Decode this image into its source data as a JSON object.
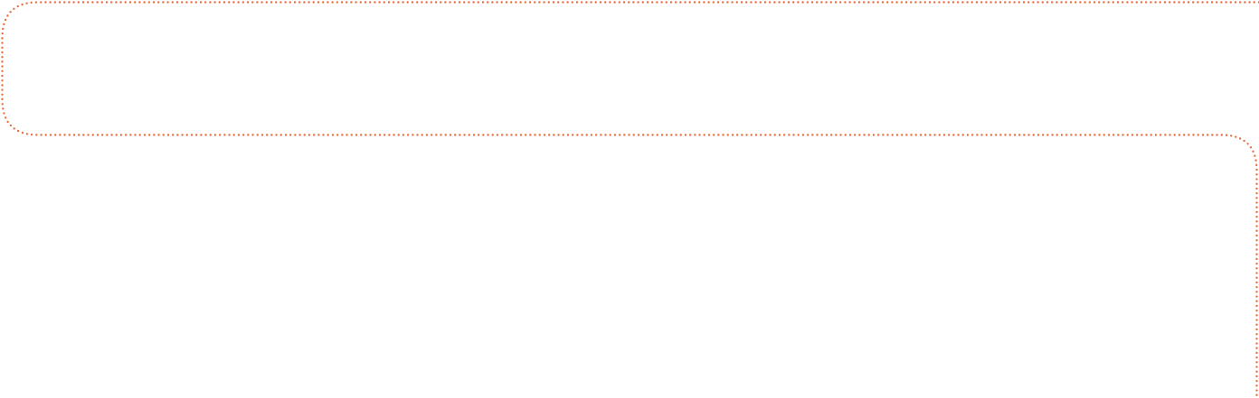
{
  "connector": {
    "style": "dotted",
    "color": "#e8703f",
    "shape": "rounded-step",
    "segments": [
      "top-horizontal",
      "left-rounded-turn",
      "middle-horizontal",
      "right-rounded-turn",
      "right-vertical"
    ]
  }
}
